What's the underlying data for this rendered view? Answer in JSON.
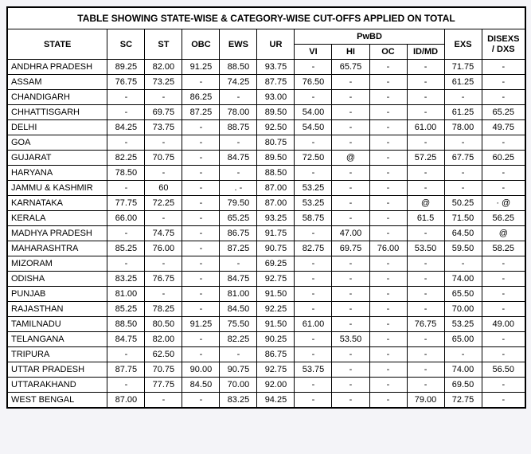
{
  "title": "TABLE SHOWING STATE-WISE & CATEGORY-WISE CUT-OFFS APPLIED ON TOTAL",
  "columns": {
    "state": "STATE",
    "sc": "SC",
    "st": "ST",
    "obc": "OBC",
    "ews": "EWS",
    "ur": "UR",
    "pwbd": "PwBD",
    "vi": "VI",
    "hi": "HI",
    "oc": "OC",
    "idmd": "ID/MD",
    "exs": "EXS",
    "disexs": "DISEXS / DXS"
  },
  "rows": [
    {
      "state": "ANDHRA PRADESH",
      "sc": "89.25",
      "st": "82.00",
      "obc": "91.25",
      "ews": "88.50",
      "ur": "93.75",
      "vi": "-",
      "hi": "65.75",
      "oc": "-",
      "idmd": "-",
      "exs": "71.75",
      "disexs": "-"
    },
    {
      "state": "ASSAM",
      "sc": "76.75",
      "st": "73.25",
      "obc": "-",
      "ews": "74.25",
      "ur": "87.75",
      "vi": "76.50",
      "hi": "-",
      "oc": "-",
      "idmd": "-",
      "exs": "61.25",
      "disexs": "-"
    },
    {
      "state": "CHANDIGARH",
      "sc": "-",
      "st": "-",
      "obc": "86.25",
      "ews": "-",
      "ur": "93.00",
      "vi": "-",
      "hi": "-",
      "oc": "-",
      "idmd": "-",
      "exs": "-",
      "disexs": "-"
    },
    {
      "state": "CHHATTISGARH",
      "sc": "-",
      "st": "69.75",
      "obc": "87.25",
      "ews": "78.00",
      "ur": "89.50",
      "vi": "54.00",
      "hi": "-",
      "oc": "-",
      "idmd": "-",
      "exs": "61.25",
      "disexs": "65.25"
    },
    {
      "state": "DELHI",
      "sc": "84.25",
      "st": "73.75",
      "obc": "-",
      "ews": "88.75",
      "ur": "92.50",
      "vi": "54.50",
      "hi": "-",
      "oc": "-",
      "idmd": "61.00",
      "exs": "78.00",
      "disexs": "49.75"
    },
    {
      "state": "GOA",
      "sc": "-",
      "st": "-",
      "obc": "-",
      "ews": "-",
      "ur": "80.75",
      "vi": "-",
      "hi": "-",
      "oc": "-",
      "idmd": "-",
      "exs": "-",
      "disexs": "-"
    },
    {
      "state": "GUJARAT",
      "sc": "82.25",
      "st": "70.75",
      "obc": "-",
      "ews": "84.75",
      "ur": "89.50",
      "vi": "72.50",
      "hi": "@",
      "oc": "-",
      "idmd": "57.25",
      "exs": "67.75",
      "disexs": "60.25"
    },
    {
      "state": "HARYANA",
      "sc": "78.50",
      "st": "-",
      "obc": "-",
      "ews": "-",
      "ur": "88.50",
      "vi": "-",
      "hi": "-",
      "oc": "-",
      "idmd": "-",
      "exs": "-",
      "disexs": "-"
    },
    {
      "state": "JAMMU & KASHMIR",
      "sc": "-",
      "st": "60",
      "obc": "-",
      "ews": ".  -",
      "ur": "87.00",
      "vi": "53.25",
      "hi": "-",
      "oc": "-",
      "idmd": "-",
      "exs": "-",
      "disexs": "-"
    },
    {
      "state": "KARNATAKA",
      "sc": "77.75",
      "st": "72.25",
      "obc": "-",
      "ews": "79.50",
      "ur": "87.00",
      "vi": "53.25",
      "hi": "-",
      "oc": "-",
      "idmd": "@",
      "exs": "50.25",
      "disexs": "· @"
    },
    {
      "state": "KERALA",
      "sc": "66.00",
      "st": "-",
      "obc": "-",
      "ews": "65.25",
      "ur": "93.25",
      "vi": "58.75",
      "hi": "-",
      "oc": "-",
      "idmd": "61.5",
      "exs": "71.50",
      "disexs": "56.25"
    },
    {
      "state": "MADHYA PRADESH",
      "sc": "-",
      "st": "74.75",
      "obc": "-",
      "ews": "86.75",
      "ur": "91.75",
      "vi": "-",
      "hi": "47.00",
      "oc": "-",
      "idmd": "-",
      "exs": "64.50",
      "disexs": "@"
    },
    {
      "state": "MAHARASHTRA",
      "sc": "85.25",
      "st": "76.00",
      "obc": "-",
      "ews": "87.25",
      "ur": "90.75",
      "vi": "82.75",
      "hi": "69.75",
      "oc": "76.00",
      "idmd": "53.50",
      "exs": "59.50",
      "disexs": "58.25"
    },
    {
      "state": "MIZORAM",
      "sc": "-",
      "st": "-",
      "obc": "-",
      "ews": "-",
      "ur": "69.25",
      "vi": "-",
      "hi": "-",
      "oc": "-",
      "idmd": "-",
      "exs": "-",
      "disexs": "-"
    },
    {
      "state": "ODISHA",
      "sc": "83.25",
      "st": "76.75",
      "obc": "-",
      "ews": "84.75",
      "ur": "92.75",
      "vi": "-",
      "hi": "-",
      "oc": "-",
      "idmd": "-",
      "exs": "74.00",
      "disexs": "-"
    },
    {
      "state": "PUNJAB",
      "sc": "81.00",
      "st": "-",
      "obc": "-",
      "ews": "81.00",
      "ur": "91.50",
      "vi": "-",
      "hi": "-",
      "oc": "-",
      "idmd": "-",
      "exs": "65.50",
      "disexs": "-"
    },
    {
      "state": "RAJASTHAN",
      "sc": "85.25",
      "st": "78.25",
      "obc": "-",
      "ews": "84.50",
      "ur": "92.25",
      "vi": "-",
      "hi": "-",
      "oc": "-",
      "idmd": "-",
      "exs": "70.00",
      "disexs": "-"
    },
    {
      "state": "TAMILNADU",
      "sc": "88.50",
      "st": "80.50",
      "obc": "91.25",
      "ews": "75.50",
      "ur": "91.50",
      "vi": "61.00",
      "hi": "-",
      "oc": "-",
      "idmd": "76.75",
      "exs": "53.25",
      "disexs": "49.00"
    },
    {
      "state": "TELANGANA",
      "sc": "84.75",
      "st": "82.00",
      "obc": "-",
      "ews": "82.25",
      "ur": "90.25",
      "vi": "-",
      "hi": "53.50",
      "oc": "-",
      "idmd": "-",
      "exs": "65.00",
      "disexs": "-"
    },
    {
      "state": "TRIPURA",
      "sc": "-",
      "st": "62.50",
      "obc": "-",
      "ews": "-",
      "ur": "86.75",
      "vi": "-",
      "hi": "-",
      "oc": "-",
      "idmd": "-",
      "exs": "-",
      "disexs": "-"
    },
    {
      "state": "UTTAR PRADESH",
      "sc": "87.75",
      "st": "70.75",
      "obc": "90.00",
      "ews": "90.75",
      "ur": "92.75",
      "vi": "53.75",
      "hi": "-",
      "oc": "-",
      "idmd": "-",
      "exs": "74.00",
      "disexs": "56.50"
    },
    {
      "state": "UTTARAKHAND",
      "sc": "-",
      "st": "77.75",
      "obc": "84.50",
      "ews": "70.00",
      "ur": "92.00",
      "vi": "-",
      "hi": "-",
      "oc": "-",
      "idmd": "-",
      "exs": "69.50",
      "disexs": "-"
    },
    {
      "state": "WEST BENGAL",
      "sc": "87.00",
      "st": "-",
      "obc": "-",
      "ews": "83.25",
      "ur": "94.25",
      "vi": "-",
      "hi": "-",
      "oc": "-",
      "idmd": "79.00",
      "exs": "72.75",
      "disexs": "-"
    }
  ],
  "col_widths": {
    "state": 120,
    "sc": 45,
    "st": 45,
    "obc": 45,
    "ews": 45,
    "ur": 45,
    "vi": 45,
    "hi": 45,
    "oc": 45,
    "idmd": 45,
    "exs": 45,
    "disexs": 52
  },
  "styling": {
    "background": "#ffffff",
    "page_bg": "#f4f4f8",
    "border_color": "#000000",
    "text_color": "#000000",
    "font_size_body": 11,
    "font_size_title": 12,
    "font_family": "Arial"
  }
}
